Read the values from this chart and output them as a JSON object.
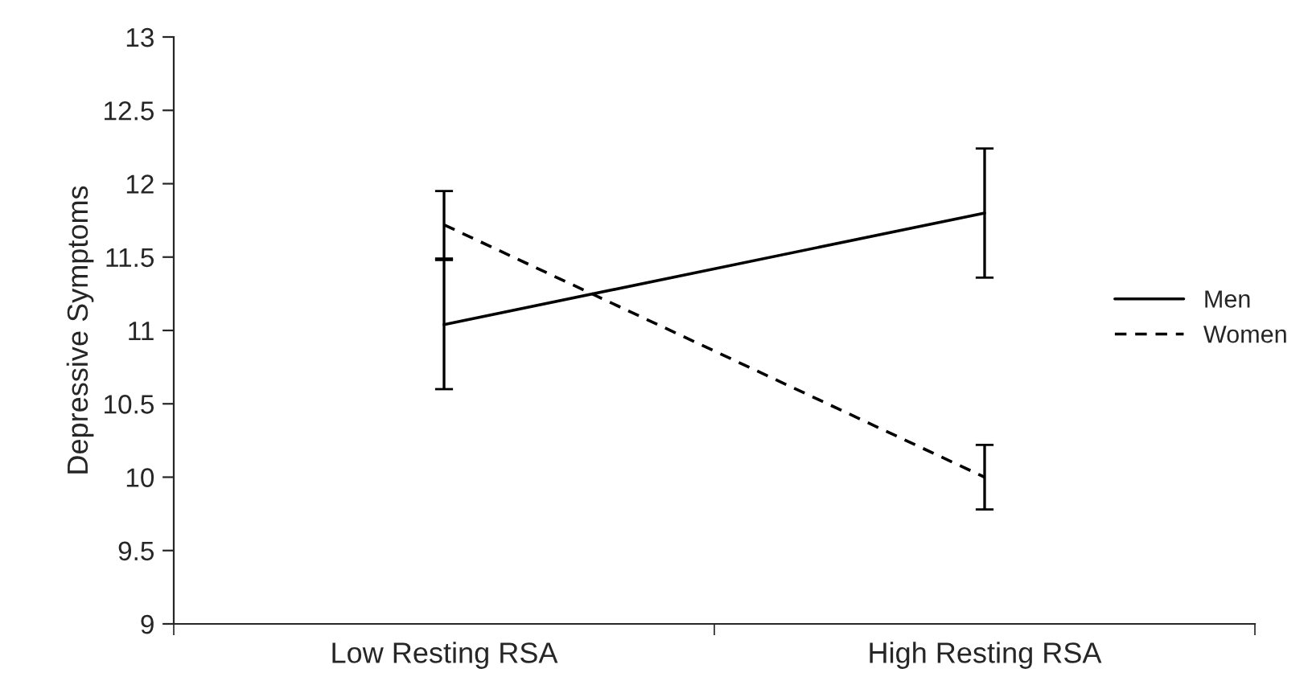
{
  "chart_data": {
    "type": "line",
    "ylabel": "Depressive Symptoms",
    "categories": [
      "Low Resting RSA",
      "High Resting RSA"
    ],
    "series": [
      {
        "name": "Men",
        "color": "#000000",
        "line_style": "solid",
        "values": [
          11.04,
          11.8
        ],
        "errors": [
          0.44,
          0.44
        ]
      },
      {
        "name": "Women",
        "color": "#000000",
        "line_style": "dashed",
        "values": [
          11.72,
          10.0
        ],
        "errors": [
          0.23,
          0.22
        ]
      }
    ],
    "ylim": [
      9,
      13
    ],
    "yticks": [
      9,
      9.5,
      10,
      10.5,
      11,
      11.5,
      12,
      12.5,
      13
    ],
    "grid": false,
    "legend": "right",
    "marker": "none"
  }
}
